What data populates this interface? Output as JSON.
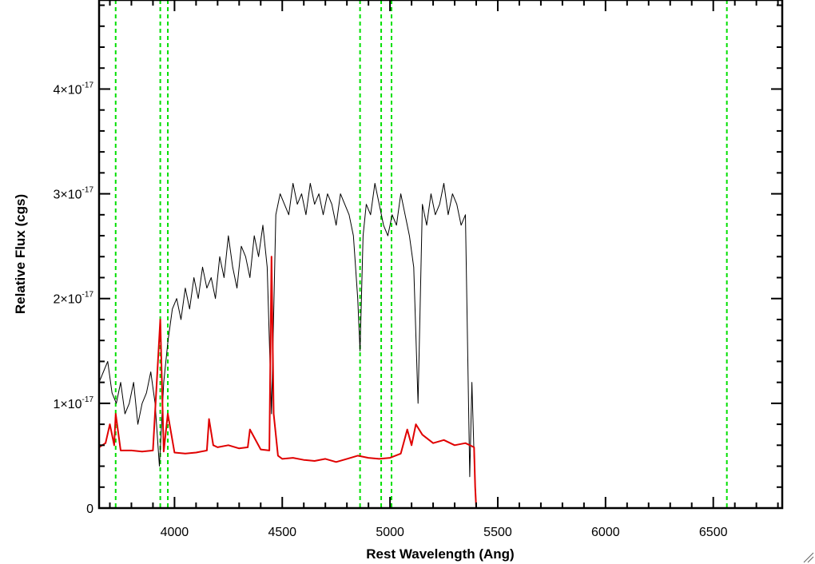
{
  "chart_data": {
    "type": "line",
    "title": "",
    "xlabel": "Rest Wavelength (Ang)",
    "ylabel": "Relative Flux (cgs)",
    "xlim": [
      3650,
      6820
    ],
    "ylim": [
      0,
      4.85e-17
    ],
    "x_ticks": [
      4000,
      4500,
      5000,
      5500,
      6000,
      6500
    ],
    "x_tick_labels": [
      "4000",
      "4500",
      "5000",
      "5500",
      "6000",
      "6500"
    ],
    "y_ticks": [
      0,
      1e-17,
      2e-17,
      3e-17,
      4e-17
    ],
    "y_tick_labels": [
      {
        "mantissa": "0",
        "times": "",
        "base": "",
        "exponent": ""
      },
      {
        "mantissa": "1",
        "times": "×",
        "base": "10",
        "exponent": "-17"
      },
      {
        "mantissa": "2",
        "times": "×",
        "base": "10",
        "exponent": "-17"
      },
      {
        "mantissa": "3",
        "times": "×",
        "base": "10",
        "exponent": "-17"
      },
      {
        "mantissa": "4",
        "times": "×",
        "base": "10",
        "exponent": "-17"
      }
    ],
    "grid": false,
    "legend": "none",
    "vertical_lines": {
      "color": "#00e000",
      "style": "dashed",
      "x": [
        3727,
        3934,
        3969,
        4861,
        4959,
        5007,
        6563
      ]
    },
    "series": [
      {
        "color": "#000000",
        "x": [
          3650,
          3670,
          3690,
          3710,
          3730,
          3750,
          3770,
          3790,
          3810,
          3830,
          3850,
          3870,
          3890,
          3910,
          3930,
          3950,
          3970,
          3990,
          4010,
          4030,
          4050,
          4070,
          4090,
          4110,
          4130,
          4150,
          4170,
          4190,
          4210,
          4230,
          4250,
          4270,
          4290,
          4310,
          4330,
          4350,
          4370,
          4390,
          4410,
          4430,
          4450,
          4470,
          4490,
          4510,
          4530,
          4550,
          4570,
          4590,
          4610,
          4630,
          4650,
          4670,
          4690,
          4710,
          4730,
          4750,
          4770,
          4790,
          4810,
          4830,
          4850,
          4861,
          4875,
          4890,
          4910,
          4930,
          4950,
          4970,
          4990,
          5010,
          5030,
          5050,
          5070,
          5090,
          5110,
          5130,
          5150,
          5170,
          5190,
          5210,
          5230,
          5250,
          5270,
          5290,
          5310,
          5330,
          5350,
          5370,
          5380,
          5390,
          5400,
          5500,
          6000,
          6500,
          6820
        ],
        "y": [
          1.2e-17,
          1.3e-17,
          1.4e-17,
          1.1e-17,
          1e-17,
          1.2e-17,
          9e-18,
          1e-17,
          1.2e-17,
          8e-18,
          1e-17,
          1.1e-17,
          1.3e-17,
          1e-17,
          4e-18,
          1.2e-17,
          1.6e-17,
          1.9e-17,
          2e-17,
          1.8e-17,
          2.1e-17,
          1.9e-17,
          2.2e-17,
          2e-17,
          2.3e-17,
          2.1e-17,
          2.2e-17,
          2e-17,
          2.4e-17,
          2.2e-17,
          2.6e-17,
          2.3e-17,
          2.1e-17,
          2.5e-17,
          2.4e-17,
          2.2e-17,
          2.6e-17,
          2.4e-17,
          2.7e-17,
          2.3e-17,
          9e-18,
          2.8e-17,
          3e-17,
          2.9e-17,
          2.8e-17,
          3.1e-17,
          2.9e-17,
          3e-17,
          2.8e-17,
          3.1e-17,
          2.9e-17,
          3e-17,
          2.8e-17,
          3e-17,
          2.9e-17,
          2.7e-17,
          3e-17,
          2.9e-17,
          2.8e-17,
          2.6e-17,
          2e-17,
          1.5e-17,
          2.6e-17,
          2.9e-17,
          2.8e-17,
          3.1e-17,
          2.9e-17,
          2.7e-17,
          2.6e-17,
          2.8e-17,
          2.7e-17,
          3e-17,
          2.8e-17,
          2.6e-17,
          2.3e-17,
          1e-17,
          2.9e-17,
          2.7e-17,
          3e-17,
          2.8e-17,
          2.9e-17,
          3.1e-17,
          2.8e-17,
          3e-17,
          2.9e-17,
          2.7e-17,
          2.8e-17,
          3e-18,
          1.2e-17,
          5e-18,
          0,
          0,
          0,
          0,
          0
        ]
      },
      {
        "color": "#e00000",
        "x": [
          3650,
          3680,
          3700,
          3720,
          3727,
          3750,
          3800,
          3850,
          3900,
          3934,
          3950,
          3969,
          4000,
          4050,
          4100,
          4150,
          4160,
          4180,
          4200,
          4250,
          4300,
          4340,
          4350,
          4400,
          4440,
          4450,
          4460,
          4480,
          4500,
          4550,
          4600,
          4650,
          4700,
          4750,
          4800,
          4850,
          4900,
          4950,
          5000,
          5050,
          5080,
          5100,
          5120,
          5150,
          5200,
          5250,
          5300,
          5350,
          5390,
          5395,
          5400,
          6000,
          6500,
          6820
        ],
        "y": [
          5.8e-18,
          6.2e-18,
          8e-18,
          6e-18,
          9e-18,
          5.5e-18,
          5.5e-18,
          5.4e-18,
          5.5e-18,
          1.8e-17,
          5.4e-18,
          9e-18,
          5.3e-18,
          5.2e-18,
          5.3e-18,
          5.5e-18,
          8.5e-18,
          6e-18,
          5.8e-18,
          6e-18,
          5.7e-18,
          5.8e-18,
          7.5e-18,
          5.6e-18,
          5.5e-18,
          2.4e-17,
          9e-18,
          5e-18,
          4.7e-18,
          4.8e-18,
          4.6e-18,
          4.5e-18,
          4.7e-18,
          4.4e-18,
          4.7e-18,
          5e-18,
          4.8e-18,
          4.7e-18,
          4.8e-18,
          5.2e-18,
          7.5e-18,
          6e-18,
          8e-18,
          7e-18,
          6.2e-18,
          6.5e-18,
          6e-18,
          6.2e-18,
          5.8e-18,
          2e-18,
          0,
          0,
          0,
          0
        ]
      }
    ]
  }
}
